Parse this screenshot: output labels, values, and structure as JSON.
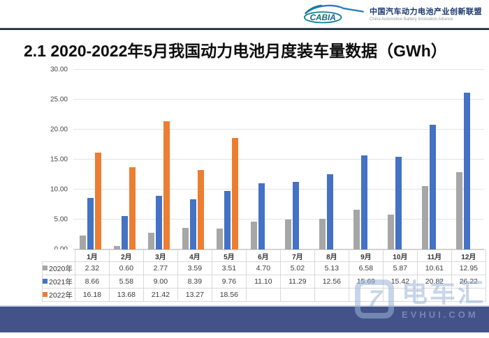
{
  "header": {
    "logo_text": "CABIA",
    "org_name_cn": "中国汽车动力电池产业创新联盟",
    "org_name_en": "China Automotive Battery Innovation Alliance"
  },
  "title": "2.1 2020-2022年5月我国动力电池月度装车量数据（GWh）",
  "chart_data": {
    "type": "bar",
    "title": "2020-2022年5月我国动力电池月度装车量数据（GWh）",
    "categories": [
      "1月",
      "2月",
      "3月",
      "4月",
      "5月",
      "6月",
      "7月",
      "8月",
      "9月",
      "10月",
      "11月",
      "12月"
    ],
    "series": [
      {
        "name": "2020年",
        "color": "#a6a6a6",
        "values": [
          2.32,
          0.6,
          2.77,
          3.59,
          3.51,
          4.7,
          5.02,
          5.13,
          6.58,
          5.87,
          10.61,
          12.95
        ]
      },
      {
        "name": "2021年",
        "color": "#4472c4",
        "values": [
          8.66,
          5.58,
          9.0,
          8.39,
          9.76,
          11.1,
          11.29,
          12.56,
          15.69,
          15.42,
          20.82,
          26.22
        ]
      },
      {
        "name": "2022年",
        "color": "#ed7d31",
        "values": [
          16.18,
          13.68,
          21.42,
          13.27,
          18.56,
          null,
          null,
          null,
          null,
          null,
          null,
          null
        ]
      }
    ],
    "xlabel": "",
    "ylabel": "",
    "ylim": [
      0,
      30
    ],
    "ytick_step": 5,
    "ytick_labels": [
      "0.00",
      "5.00",
      "10.00",
      "15.00",
      "20.00",
      "25.00",
      "30.00"
    ],
    "grid": true,
    "legend_position": "table-left"
  },
  "watermark": {
    "name_cn": "电车汇",
    "site": "EVHUI.COM",
    "glyph": "7"
  },
  "colors": {
    "footer_bar": "#44528a",
    "grid_line": "#e3e3e3",
    "table_border": "#d9d9d9",
    "logo_teal": "#0a6d80",
    "logo_blue": "#2b7bbf",
    "org_name_blue": "#17356b"
  }
}
